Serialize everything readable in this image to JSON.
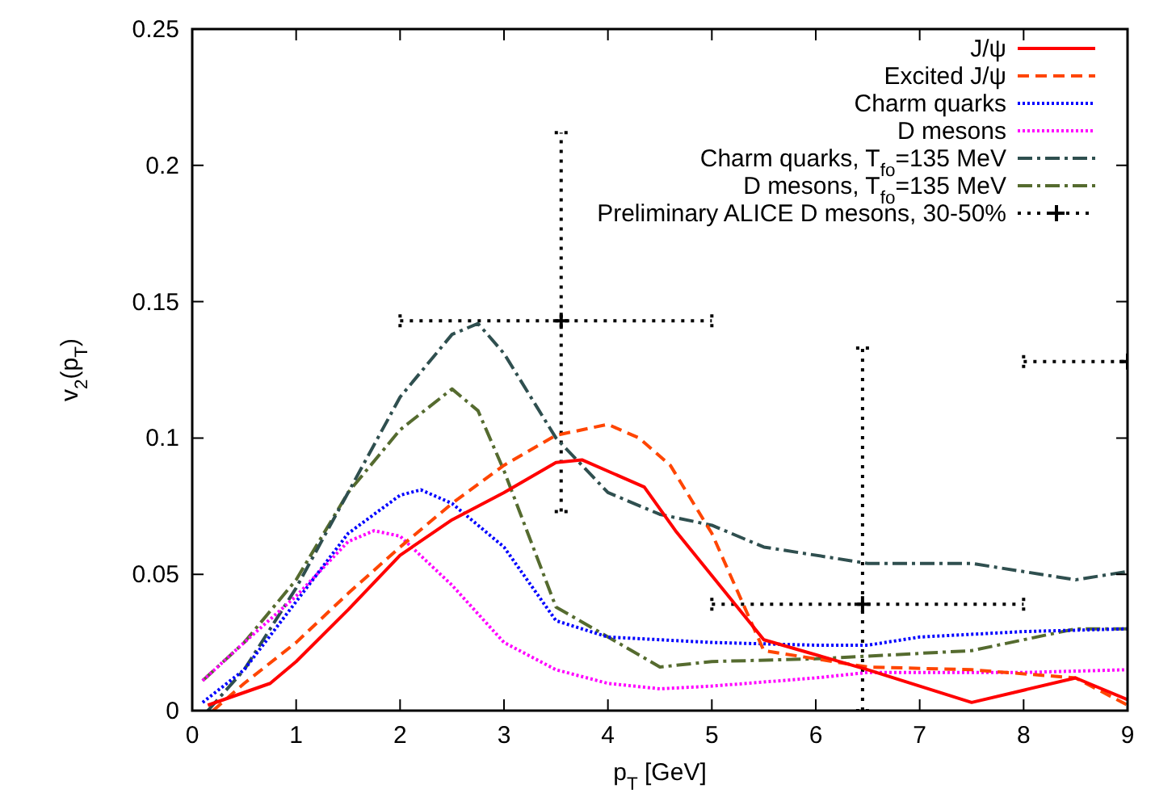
{
  "chart_data": {
    "type": "line",
    "xlabel": "p$_{T}$ [GeV]",
    "ylabel": "v$_{2}$(p$_{T}$)",
    "xlim": [
      0,
      9
    ],
    "ylim": [
      0,
      0.25
    ],
    "xticks": [
      0,
      1,
      2,
      3,
      4,
      5,
      6,
      7,
      8,
      9
    ],
    "yticks": [
      0,
      0.05,
      0.1,
      0.15,
      0.2,
      0.25
    ],
    "grid": false,
    "legend": "top right",
    "series": [
      {
        "name": "J/ψ",
        "color": "#ff0000",
        "line_style": "solid",
        "x": [
          0.15,
          0.75,
          1,
          1.5,
          2,
          2.5,
          3,
          3.5,
          3.75,
          4.05,
          4.35,
          4.65,
          5.5,
          6.5,
          7.5,
          8.5,
          9
        ],
        "values": [
          0.002,
          0.01,
          0.018,
          0.037,
          0.057,
          0.07,
          0.08,
          0.091,
          0.092,
          0.087,
          0.082,
          0.066,
          0.026,
          0.015,
          0.003,
          0.012,
          0.004
        ]
      },
      {
        "name": "Excited J/ψ",
        "color": "#ff4500",
        "line_style": "dashed",
        "x": [
          0.2,
          0.5,
          1,
          1.5,
          2,
          2.5,
          3,
          3.5,
          4,
          4.3,
          4.6,
          5,
          5.5,
          6.5,
          7.5,
          8.5,
          9
        ],
        "values": [
          0,
          0.01,
          0.025,
          0.043,
          0.06,
          0.076,
          0.09,
          0.101,
          0.105,
          0.1,
          0.09,
          0.065,
          0.022,
          0.016,
          0.015,
          0.012,
          0.002
        ]
      },
      {
        "name": "Charm quarks",
        "color": "#0000ff",
        "line_style": "dotted",
        "x": [
          0.1,
          0.5,
          1,
          1.5,
          2,
          2.2,
          2.5,
          3,
          3.5,
          4,
          4.5,
          5,
          6,
          6.5,
          7,
          8,
          9
        ],
        "values": [
          0.003,
          0.015,
          0.04,
          0.065,
          0.079,
          0.081,
          0.076,
          0.06,
          0.033,
          0.027,
          0.026,
          0.025,
          0.024,
          0.024,
          0.027,
          0.029,
          0.03
        ]
      },
      {
        "name": "D mesons",
        "color": "#ff00ff",
        "line_style": "dotted",
        "x": [
          0.1,
          0.5,
          1,
          1.5,
          1.75,
          2,
          2.5,
          3,
          3.5,
          4,
          4.5,
          5,
          6,
          6.5,
          7,
          8,
          9
        ],
        "values": [
          0.011,
          0.025,
          0.042,
          0.062,
          0.066,
          0.064,
          0.046,
          0.025,
          0.015,
          0.01,
          0.008,
          0.009,
          0.012,
          0.014,
          0.014,
          0.014,
          0.015
        ]
      },
      {
        "name": "Charm quarks, T$_{fo}$=135 MeV",
        "color": "#2f4f4f",
        "line_style": "dashdot",
        "x": [
          0.15,
          0.5,
          1,
          1.5,
          2,
          2.5,
          2.75,
          3,
          3.5,
          4,
          4.5,
          5,
          5.5,
          6.5,
          7.5,
          8.5,
          9
        ],
        "values": [
          0,
          0.015,
          0.045,
          0.08,
          0.115,
          0.138,
          0.142,
          0.131,
          0.1,
          0.08,
          0.072,
          0.068,
          0.06,
          0.054,
          0.054,
          0.048,
          0.051
        ]
      },
      {
        "name": "D mesons, T$_{fo}$=135 MeV",
        "color": "#556b2f",
        "line_style": "dashdot",
        "x": [
          0.1,
          0.5,
          1,
          1.5,
          2,
          2.5,
          2.75,
          3,
          3.5,
          4,
          4.5,
          5,
          6,
          6.5,
          7.5,
          8.5,
          9
        ],
        "values": [
          0.011,
          0.025,
          0.048,
          0.08,
          0.103,
          0.118,
          0.11,
          0.088,
          0.038,
          0.027,
          0.016,
          0.018,
          0.019,
          0.02,
          0.022,
          0.03,
          0.03
        ]
      },
      {
        "name": "Preliminary ALICE D mesons, 30-50%",
        "type": "scatter",
        "marker": "cross",
        "color": "#000000",
        "x": [
          3.55,
          6.45,
          9
        ],
        "values": [
          0.143,
          0.039,
          0.128
        ],
        "errors": [
          [
            0.073,
            0.212
          ],
          [
            0,
            0.133
          ],
          null
        ],
        "xerrors": [
          [
            2,
            5
          ],
          [
            5,
            8
          ],
          [
            8,
            9
          ]
        ]
      }
    ]
  }
}
